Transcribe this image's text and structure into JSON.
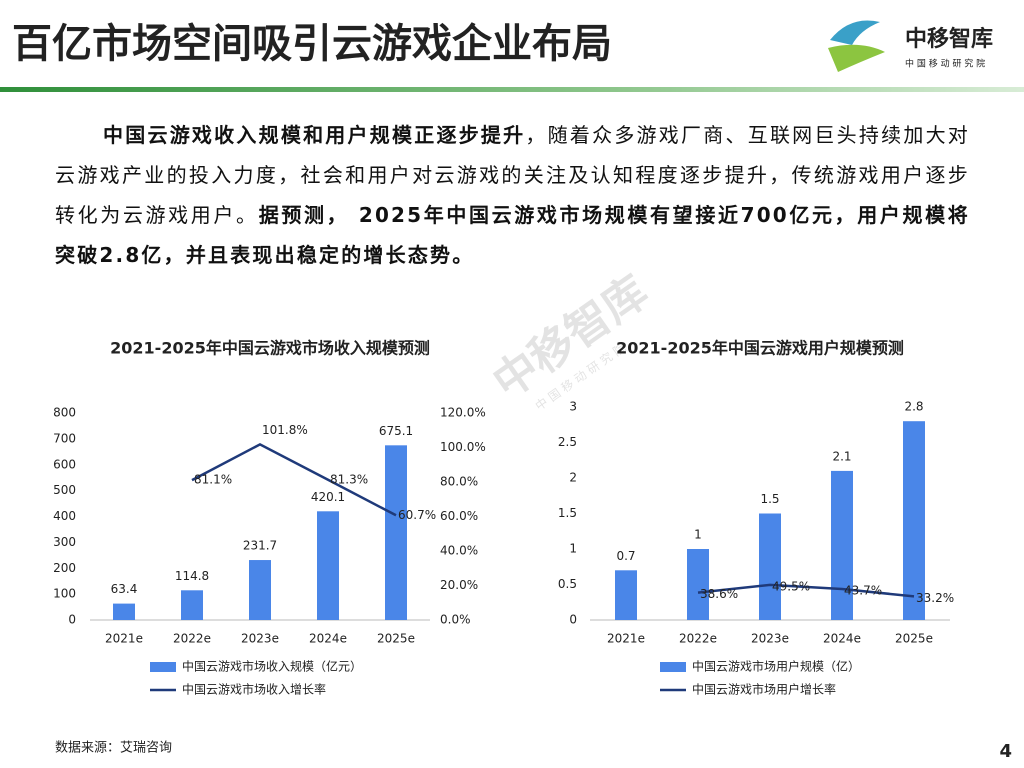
{
  "header": {
    "title": "百亿市场空间吸引云游戏企业布局"
  },
  "logo": {
    "name": "中移智库",
    "subtitle": "中 国 移 动 研 究 院"
  },
  "paragraph": [
    {
      "text": "中国云游戏收入规模和用户规模正逐步提升",
      "bold": true
    },
    {
      "text": "，随着众多游戏厂商、互联网巨头持续加大对云游戏产业的投入力度，社会和用户对云游戏的关注及认知程度逐步提升，传统游戏用户逐步转化为云游戏用户。",
      "bold": false
    },
    {
      "text": "据预测， 2025年中国云游戏市场规模有望接近700亿元，用户规模将突破2.8亿，并且表现出稳定的增长态势。",
      "bold": true
    }
  ],
  "watermark": {
    "name": "中移智库",
    "subtitle": "中 国 移 动 研 究 院"
  },
  "chart_data": [
    {
      "type": "bar",
      "title": "2021-2025年中国云游戏市场收入规模预测",
      "categories": [
        "2021e",
        "2022e",
        "2023e",
        "2024e",
        "2025e"
      ],
      "series": [
        {
          "name": "中国云游戏市场收入规模（亿元）",
          "type": "bar",
          "color": "#4a86e8",
          "values": [
            63.4,
            114.8,
            231.7,
            420.1,
            675.1
          ]
        },
        {
          "name": "中国云游戏市场收入增长率",
          "type": "line",
          "axis": "y2",
          "color": "#1f3a7a",
          "values": [
            null,
            81.1,
            101.8,
            81.3,
            60.7
          ],
          "value_labels": [
            null,
            "81.1%",
            "101.8%",
            "81.3%",
            "60.7%"
          ]
        }
      ],
      "ylim": [
        0,
        800
      ],
      "yticks": [
        0,
        100,
        200,
        300,
        400,
        500,
        600,
        700,
        800
      ],
      "y2lim": [
        0,
        120
      ],
      "y2ticks": [
        {
          "value": 0,
          "label": "0.0%"
        },
        {
          "value": 20,
          "label": "20.0%"
        },
        {
          "value": 40,
          "label": "40.0%"
        },
        {
          "value": 60,
          "label": "60.0%"
        },
        {
          "value": 80,
          "label": "80.0%"
        },
        {
          "value": 100,
          "label": "100.0%"
        },
        {
          "value": 120,
          "label": "120.0%"
        }
      ],
      "grid": false,
      "legend": "bottom"
    },
    {
      "type": "bar",
      "title": "2021-2025年中国云游戏用户规模预测",
      "categories": [
        "2021e",
        "2022e",
        "2023e",
        "2024e",
        "2025e"
      ],
      "series": [
        {
          "name": "中国云游戏市场用户规模（亿）",
          "type": "bar",
          "color": "#4a86e8",
          "values": [
            0.7,
            1,
            1.5,
            2.1,
            2.8
          ]
        },
        {
          "name": "中国云游戏市场用户增长率",
          "type": "line",
          "color": "#1f3a7a",
          "values": [
            null,
            0.386,
            0.495,
            0.437,
            0.332
          ],
          "value_labels": [
            null,
            "38.6%",
            "49.5%",
            "43.7%",
            "33.2%"
          ]
        }
      ],
      "ylim": [
        0,
        3
      ],
      "yticks": [
        0,
        0.5,
        1,
        1.5,
        2,
        2.5,
        3
      ],
      "grid": false,
      "legend": "bottom"
    }
  ],
  "source": "数据来源：艾瑞咨询",
  "page_number": 4
}
